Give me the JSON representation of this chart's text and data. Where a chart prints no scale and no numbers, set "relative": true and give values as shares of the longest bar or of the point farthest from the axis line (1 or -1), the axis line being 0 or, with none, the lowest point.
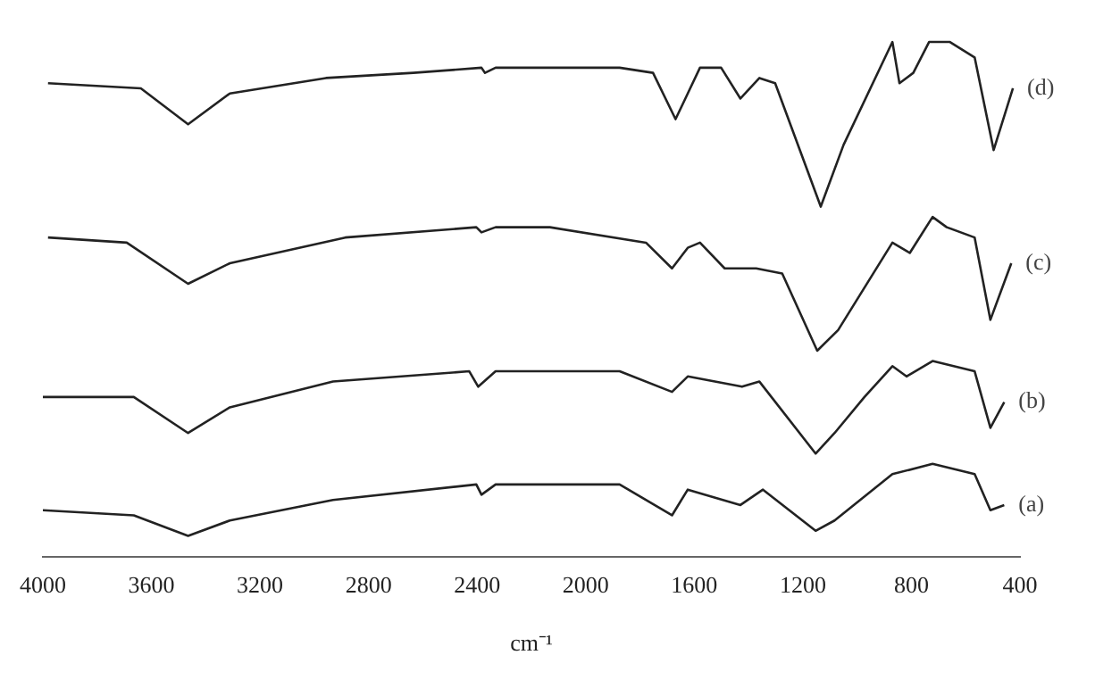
{
  "chart_data": {
    "type": "line",
    "relative": true,
    "xlabel": "cm⁻¹",
    "xlim": [
      4000,
      400
    ],
    "xticks": [
      4000,
      3600,
      3200,
      2800,
      2400,
      2000,
      1600,
      1200,
      800,
      400
    ],
    "grid": false,
    "legend": false,
    "marker": "none",
    "line_style": "solid",
    "series": [
      {
        "name": "(a)",
        "color": "#222222",
        "x": [
          4000,
          3665,
          3465,
          3311,
          2931,
          2403,
          2384,
          2332,
          1875,
          1682,
          1624,
          1430,
          1347,
          1153,
          1083,
          870,
          722,
          567,
          509,
          458
        ],
        "values": [
          0.09,
          0.08,
          0.04,
          0.07,
          0.11,
          0.14,
          0.12,
          0.14,
          0.14,
          0.08,
          0.13,
          0.1,
          0.13,
          0.05,
          0.07,
          0.16,
          0.18,
          0.16,
          0.09,
          0.1
        ]
      },
      {
        "name": "(b)",
        "color": "#222222",
        "x": [
          4000,
          3665,
          3465,
          3311,
          2931,
          2429,
          2396,
          2332,
          1875,
          1682,
          1624,
          1424,
          1360,
          1153,
          1083,
          973,
          870,
          818,
          722,
          567,
          509,
          458
        ],
        "values": [
          0.31,
          0.31,
          0.24,
          0.29,
          0.34,
          0.36,
          0.33,
          0.36,
          0.36,
          0.32,
          0.35,
          0.33,
          0.34,
          0.2,
          0.24,
          0.31,
          0.37,
          0.35,
          0.38,
          0.36,
          0.25,
          0.3
        ]
      },
      {
        "name": "(c)",
        "color": "#222222",
        "x": [
          3981,
          3691,
          3465,
          3311,
          2886,
          2403,
          2384,
          2332,
          2132,
          1778,
          1682,
          1624,
          1579,
          1488,
          1372,
          1276,
          1147,
          1070,
          870,
          806,
          722,
          670,
          567,
          509,
          432
        ],
        "values": [
          0.62,
          0.61,
          0.53,
          0.57,
          0.62,
          0.64,
          0.63,
          0.64,
          0.64,
          0.61,
          0.56,
          0.6,
          0.61,
          0.56,
          0.56,
          0.55,
          0.4,
          0.44,
          0.61,
          0.59,
          0.66,
          0.64,
          0.62,
          0.46,
          0.57
        ]
      },
      {
        "name": "(d)",
        "color": "#222222",
        "x": [
          3981,
          3639,
          3465,
          3311,
          2957,
          2635,
          2384,
          2371,
          2332,
          1875,
          1752,
          1669,
          1624,
          1579,
          1501,
          1430,
          1360,
          1302,
          1134,
          1050,
          870,
          844,
          793,
          735,
          658,
          567,
          497,
          426
        ],
        "values": [
          0.92,
          0.91,
          0.84,
          0.9,
          0.93,
          0.94,
          0.95,
          0.94,
          0.95,
          0.95,
          0.94,
          0.85,
          0.9,
          0.95,
          0.95,
          0.89,
          0.93,
          0.92,
          0.68,
          0.8,
          1.0,
          0.92,
          0.94,
          1.0,
          1.0,
          0.97,
          0.79,
          0.91
        ]
      }
    ]
  }
}
